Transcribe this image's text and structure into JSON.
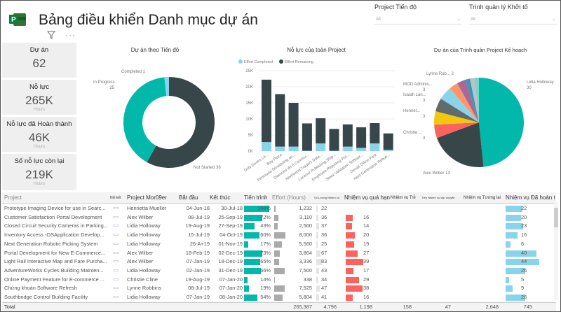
{
  "header": {
    "title": "Bảng điều khiển Danh mục dự án",
    "logo_letter": "P",
    "filter_icon": "filter-icon",
    "more_icon": "more-options-icon"
  },
  "slicers": [
    {
      "label": "Project Tiến độ",
      "value": "All"
    },
    {
      "label": "Trình quản lý Khởi tố",
      "value": "All"
    }
  ],
  "kpis": [
    {
      "title": "Dự án",
      "value": "62",
      "unit": ""
    },
    {
      "title": "Nỗ lực",
      "value": "265K",
      "unit": "Hours"
    },
    {
      "title": "Nỗ lực đã Hoàn thành",
      "value": "46K",
      "unit": "Hours"
    },
    {
      "title": "Số nỗ lực còn lại",
      "value": "219K",
      "unit": "Hours"
    }
  ],
  "colors": {
    "teal": "#01B8AA",
    "dark": "#374649",
    "lightblue": "#8AD4EB",
    "red": "#FD625E",
    "grey": "#B3B3B3"
  },
  "chart_data": [
    {
      "type": "pie",
      "variant": "donut",
      "title": "Dự án theo Tiến độ",
      "slices": [
        {
          "label": "Not Started",
          "value": 36,
          "color": "#374649"
        },
        {
          "label": "In Progress",
          "value": 25,
          "color": "#01B8AA"
        },
        {
          "label": "Completed",
          "value": 1,
          "color": "#8AD4EB"
        }
      ]
    },
    {
      "type": "bar",
      "stacked": true,
      "title": "Nỗ lực của toàn Project",
      "legend": "top-left",
      "categories": [
        "Dufy Dunes Lo...",
        "Bay Plaza",
        "Peninsula Scheduling an...",
        "Diamond Wi-fi Commu...",
        "Northwind Traders Data...",
        "Lucerne Publishing Ship...",
        "Employee Reporting Por...",
        "Stock Validation Softwar...",
        "Denali Office Park",
        "Next Generation Roboti..."
      ],
      "series": [
        {
          "name": "Effort Completed",
          "color": "#8AD4EB",
          "values": [
            2800,
            1400,
            1400,
            100,
            2400,
            100,
            1400,
            1000,
            2400,
            400
          ]
        },
        {
          "name": "Effort Remaining",
          "color": "#374649",
          "values": [
            19400,
            16300,
            13600,
            8500,
            7800,
            6800,
            6900,
            6400,
            6300,
            5100
          ]
        }
      ],
      "ylim": [
        0,
        25000
      ],
      "yticks": [
        "0K",
        "5K",
        "10K",
        "15K",
        "20K",
        "25K"
      ],
      "grid": true
    },
    {
      "type": "pie",
      "title": "Dự án của Trình quản Project Kế hoạch",
      "slices": [
        {
          "label": "Lidia Holloway",
          "value": 30,
          "color": "#01B8AA"
        },
        {
          "label": "Alex Wilber",
          "value": 13,
          "color": "#374649"
        },
        {
          "label": "Christie ...",
          "value": 3,
          "color": "#FD625E"
        },
        {
          "label": "Henriet...",
          "value": 3,
          "color": "#F2C80F"
        },
        {
          "label": "Isaiah Lan...",
          "value": 3,
          "color": "#5F6B6D"
        },
        {
          "label": "MOD Adminis...",
          "value": 3,
          "color": "#8AD4EB"
        },
        {
          "label": "Lynne Rob...",
          "value": 2,
          "color": "#FE9666"
        },
        {
          "label": "",
          "value": 2,
          "color": "#A66999"
        },
        {
          "label": "",
          "value": 1,
          "color": "#3599B8"
        },
        {
          "label": "",
          "value": 1,
          "color": "#C0C0C0"
        },
        {
          "label": "",
          "value": 1,
          "color": "#7DD3CB"
        }
      ]
    }
  ],
  "table": {
    "columns": [
      "Project",
      "Nối kết",
      "Project Mor09er",
      "Bắt đầu",
      "Kết thúc",
      "Tiến trình",
      "Effort (Hours)",
      "Số Lượng Nhiệm vụ",
      "Nhiệm vụ quá hạn",
      "Nhiệm vụ Trễ",
      "Trên Nhiệm vụ vận chuyển",
      "Nhiệm vụ Tương lai",
      "Nhiệm vụ Đã hoàn tất"
    ],
    "rows": [
      [
        "Prototype Imaging Device for use in Searc...",
        "Henrietta Mueller",
        "04-Jun-18",
        "30-Jul-18",
        100,
        "1,232",
        22,
        null,
        22
      ],
      [
        "Customer Satisfaction Portal Development",
        "Alex Wilber",
        "08-Jul-19",
        "25-Sep-19",
        72,
        "3,110",
        36,
        16,
        20
      ],
      [
        "Closed Circuit Security Cameras in Parking...",
        "Lidia Holloway",
        "19-Aug-19",
        "27-Sep-19",
        43,
        "2,560",
        37,
        14,
        23
      ],
      [
        "Inventory Access -OSApplication Develop...",
        "Lidia Holloway",
        "15-Jul-19",
        "04-Oct-19",
        60,
        "8,000",
        36,
        20,
        16
      ],
      [
        "Next Generation Robotic Picking System",
        "Lidia Holloway",
        "26-A+19",
        "01-Nov-19",
        17,
        "5,560",
        25,
        19,
        6
      ],
      [
        "Portal Development for New E-Commerce...",
        "Alex Wilber",
        "18-Feb-19",
        "02-Dec-19",
        73,
        "3,864",
        67,
        27,
        40
      ],
      [
        "Light Rail Interactive Map and Fare Purcha...",
        "Alex Wilber",
        "07-Jan-19",
        "18-Dec-19",
        65,
        "3,336",
        83,
        39,
        44
      ],
      [
        "AdventureWorks Cycles Building Mainten...",
        "Lidia Holloway",
        "02-Jan-19",
        "31-Dec-19",
        66,
        "7,500",
        43,
        17,
        26
      ],
      [
        "Online Payment Feature for E-commerce ...",
        "Christie Cline",
        "19-Aug-19",
        "07-Jan-20",
        14,
        "338",
        34,
        29,
        5
      ],
      [
        "Chứng khoán Software Refresh",
        "Lynne Robbins",
        "08-Jul-19",
        "07-Jan-20",
        19,
        "7,525",
        47,
        38,
        9
      ],
      [
        "Southbridge Control Building Facility",
        "Lidia Holloway",
        "07-Jan-19",
        "08-Jan-20",
        54,
        "5,804",
        41,
        16,
        26
      ]
    ],
    "total": {
      "label": "Total",
      "effort": "265,387",
      "tasks": "4,796",
      "overdue": "1,198",
      "late": "158",
      "shipped": "47",
      "future": "2,648",
      "completed": "745"
    }
  }
}
